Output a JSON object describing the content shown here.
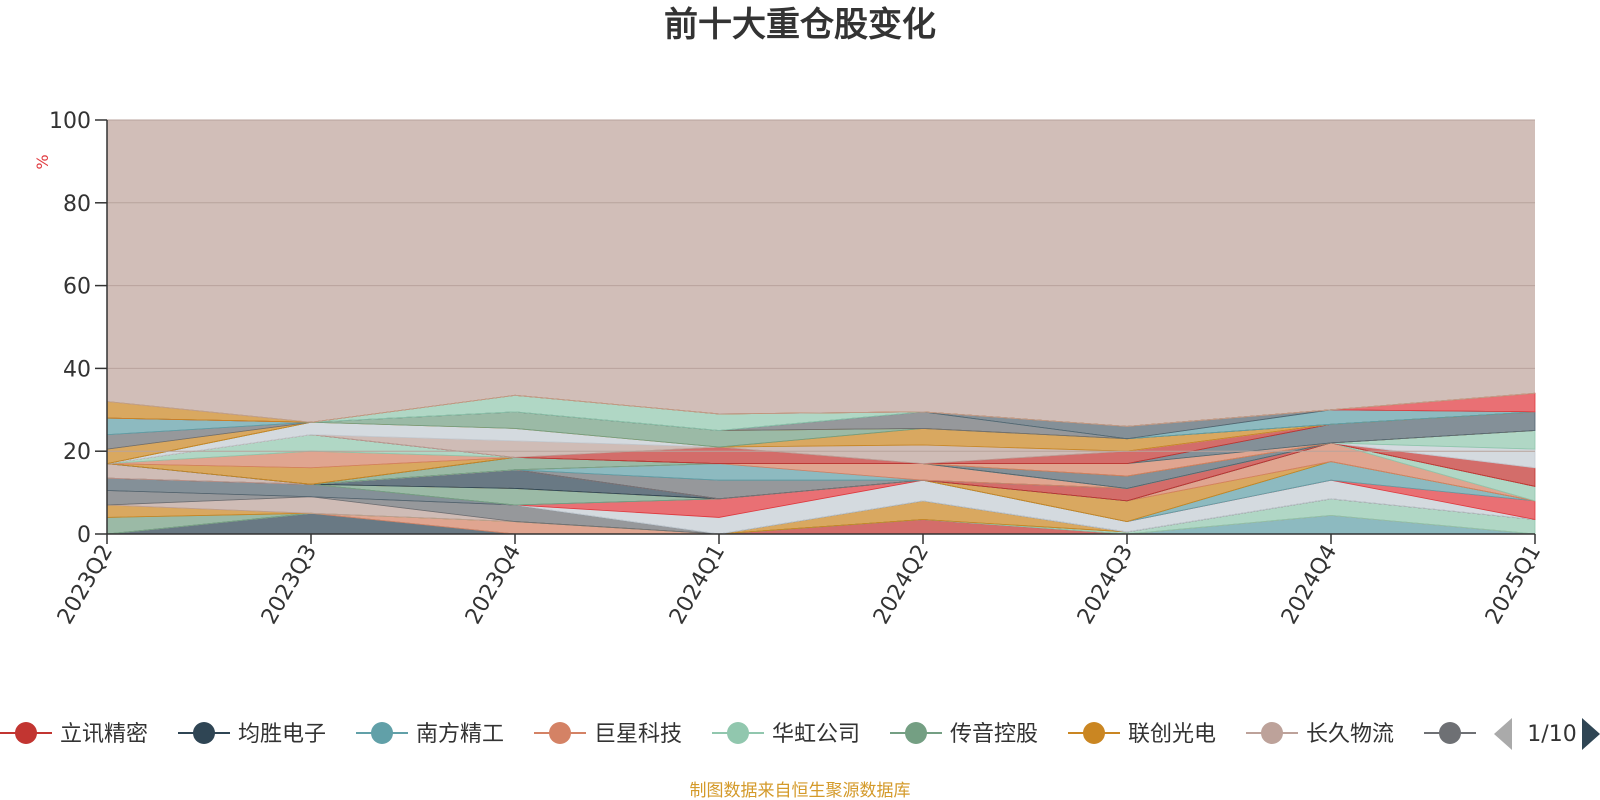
{
  "chart_data": {
    "type": "area",
    "stacked": true,
    "title": "前十大重仓股变化",
    "unit": "%",
    "x": [
      "2023Q2",
      "2023Q3",
      "2023Q4",
      "2024Q1",
      "2024Q2",
      "2024Q3",
      "2024Q4",
      "2025Q1"
    ],
    "ylim": [
      0,
      100
    ],
    "yticks": [
      0,
      20,
      40,
      60,
      80,
      100
    ],
    "grid": true,
    "legend_position": "bottom",
    "series": [
      {
        "name": "立讯精密",
        "color": "#c23531",
        "values": [
          0,
          0,
          0,
          0,
          3.5,
          0,
          0,
          0
        ]
      },
      {
        "name": "均胜电子",
        "color": "#2f4554",
        "values": [
          0,
          5,
          0,
          0,
          0,
          0,
          0,
          0
        ]
      },
      {
        "name": "南方精工",
        "color": "#61a0a8",
        "values": [
          0,
          0,
          0,
          0,
          0,
          0,
          4.5,
          0
        ]
      },
      {
        "name": "巨星科技",
        "color": "#d48265",
        "values": [
          0,
          0,
          3,
          0,
          0,
          0,
          0,
          0
        ]
      },
      {
        "name": "华虹公司",
        "color": "#91c7ae",
        "values": [
          0,
          0,
          0,
          0,
          0,
          0.5,
          4,
          3.5
        ]
      },
      {
        "name": "传音控股",
        "color": "#749f83",
        "values": [
          4,
          0,
          0,
          0,
          0,
          0,
          0,
          0
        ]
      },
      {
        "name": "联创光电",
        "color": "#ca8622",
        "values": [
          3,
          0,
          0,
          0,
          4.5,
          0,
          0,
          0
        ]
      },
      {
        "name": "长久物流",
        "color": "#bda29a",
        "values": [
          0,
          4,
          0,
          0,
          0,
          0,
          0,
          0
        ]
      },
      {
        "name": "",
        "color": "#6e7074",
        "values": [
          3.5,
          0,
          4,
          0,
          0,
          0,
          0,
          0
        ]
      },
      {
        "name": "",
        "color": "#546570",
        "values": [
          3,
          3,
          0,
          0,
          0,
          0,
          0,
          0
        ]
      },
      {
        "name": "",
        "color": "#c4ccd3",
        "values": [
          0,
          0,
          0,
          4,
          5,
          2.5,
          4.5,
          0
        ]
      },
      {
        "name": "",
        "color": "#e0393e",
        "values": [
          0,
          0,
          0,
          4.5,
          0,
          0,
          0,
          4.5
        ]
      },
      {
        "name": "",
        "color": "#61a0a8",
        "values": [
          0,
          0,
          0,
          0,
          0,
          0,
          4.5,
          0
        ]
      },
      {
        "name": "",
        "color": "#749f83",
        "values": [
          0,
          0,
          4,
          0,
          0,
          0,
          0,
          0
        ]
      },
      {
        "name": "",
        "color": "#ca8622",
        "values": [
          0,
          0,
          0,
          0,
          0,
          5,
          0,
          0
        ]
      },
      {
        "name": "",
        "color": "#d48265",
        "values": [
          0,
          0,
          0,
          0,
          0,
          0,
          4.5,
          0
        ]
      },
      {
        "name": "",
        "color": "#91c7ae",
        "values": [
          0,
          0,
          0,
          0,
          0,
          0,
          0,
          3.5
        ]
      },
      {
        "name": "",
        "color": "#2f4554",
        "values": [
          0,
          0,
          4.5,
          0,
          0,
          0,
          0,
          0
        ]
      },
      {
        "name": "",
        "color": "#c23531",
        "values": [
          0,
          0,
          0,
          0,
          0,
          3,
          0,
          0
        ]
      },
      {
        "name": "",
        "color": "#bda29a",
        "values": [
          3.5,
          0,
          0,
          0,
          0,
          0,
          0,
          0
        ]
      },
      {
        "name": "",
        "color": "#6e7074",
        "values": [
          0,
          0,
          0,
          4.5,
          0,
          0,
          0,
          0
        ]
      },
      {
        "name": "",
        "color": "#61a0a8",
        "values": [
          0,
          0,
          0,
          4,
          0,
          0,
          0,
          0
        ]
      },
      {
        "name": "",
        "color": "#d48265",
        "values": [
          0,
          0,
          0,
          0,
          4,
          0,
          0,
          0
        ]
      },
      {
        "name": "",
        "color": "#c23531",
        "values": [
          0,
          0,
          0,
          0,
          0,
          0,
          0,
          4.5
        ]
      },
      {
        "name": "",
        "color": "#c4ccd3",
        "values": [
          0,
          0,
          0,
          0,
          0,
          0,
          0,
          4.5
        ]
      },
      {
        "name": "",
        "color": "#91c7ae",
        "values": [
          0,
          0,
          0,
          0,
          0,
          0,
          0,
          4.5
        ]
      },
      {
        "name": "",
        "color": "#749f83",
        "values": [
          0,
          0,
          3,
          0,
          0,
          0,
          0,
          0
        ]
      },
      {
        "name": "",
        "color": "#546570",
        "values": [
          0,
          0,
          0,
          0,
          0,
          3,
          0,
          0
        ]
      },
      {
        "name": "",
        "color": "#ca8622",
        "values": [
          0,
          4,
          0,
          0,
          0,
          0,
          0,
          0
        ]
      },
      {
        "name": "",
        "color": "#d48265",
        "values": [
          0,
          4,
          0,
          0,
          0,
          3,
          0,
          0
        ]
      },
      {
        "name": "",
        "color": "#91c7ae",
        "values": [
          0,
          4,
          0,
          0,
          0,
          0,
          0,
          0
        ]
      },
      {
        "name": "",
        "color": "#546570",
        "values": [
          0,
          0,
          0,
          0,
          0,
          0,
          4.5,
          4.5
        ]
      },
      {
        "name": "",
        "color": "#c23531",
        "values": [
          0,
          0,
          0,
          4,
          0,
          3,
          0,
          0
        ]
      },
      {
        "name": "",
        "color": "#bda29a",
        "values": [
          0,
          0,
          4,
          0,
          4.5,
          0,
          0,
          0
        ]
      },
      {
        "name": "",
        "color": "#c4ccd3",
        "values": [
          0,
          3,
          3,
          0,
          0,
          0,
          0,
          0
        ]
      },
      {
        "name": "",
        "color": "#ca8622",
        "values": [
          0,
          0,
          0,
          0,
          4,
          3,
          0,
          0
        ]
      },
      {
        "name": "",
        "color": "#749f83",
        "values": [
          0,
          0,
          4,
          4,
          0,
          0,
          0,
          0
        ]
      },
      {
        "name": "",
        "color": "#ca8622",
        "values": [
          3.5,
          0,
          0,
          0,
          0,
          0,
          0,
          0
        ]
      },
      {
        "name": "",
        "color": "#6e7074",
        "values": [
          3.5,
          0,
          0,
          0,
          4,
          0,
          0,
          0
        ]
      },
      {
        "name": "",
        "color": "#61a0a8",
        "values": [
          4,
          0,
          0,
          0,
          0,
          0,
          3.5,
          0
        ]
      },
      {
        "name": "",
        "color": "#546570",
        "values": [
          0,
          0,
          0,
          0,
          0,
          3,
          0,
          0
        ]
      },
      {
        "name": "",
        "color": "#91c7ae",
        "values": [
          0,
          0,
          4,
          4,
          0,
          0,
          0,
          0
        ]
      },
      {
        "name": "",
        "color": "#e0393e",
        "values": [
          0,
          0,
          0,
          0,
          0,
          0,
          0,
          4.5
        ]
      },
      {
        "name": "",
        "color": "#ca8622",
        "values": [
          4,
          0,
          0,
          0,
          0,
          0,
          0,
          0
        ]
      },
      {
        "name": "",
        "color": "#bda29a",
        "values": [
          0,
          0,
          0,
          0,
          0,
          0,
          0,
          0
        ]
      }
    ],
    "remainder_color": "#bda29a"
  },
  "legend": {
    "items": [
      {
        "label": "立讯精密",
        "color": "#c23531"
      },
      {
        "label": "均胜电子",
        "color": "#2f4554"
      },
      {
        "label": "南方精工",
        "color": "#61a0a8"
      },
      {
        "label": "巨星科技",
        "color": "#d48265"
      },
      {
        "label": "华虹公司",
        "color": "#91c7ae"
      },
      {
        "label": "传音控股",
        "color": "#749f83"
      },
      {
        "label": "联创光电",
        "color": "#ca8622"
      },
      {
        "label": "长久物流",
        "color": "#bda29a"
      },
      {
        "label": "",
        "color": "#6e7074"
      }
    ],
    "page": "1/10",
    "prev_icon": "triangle-left-icon",
    "next_icon": "triangle-right-icon"
  },
  "footer": "制图数据来自恒生聚源数据库"
}
